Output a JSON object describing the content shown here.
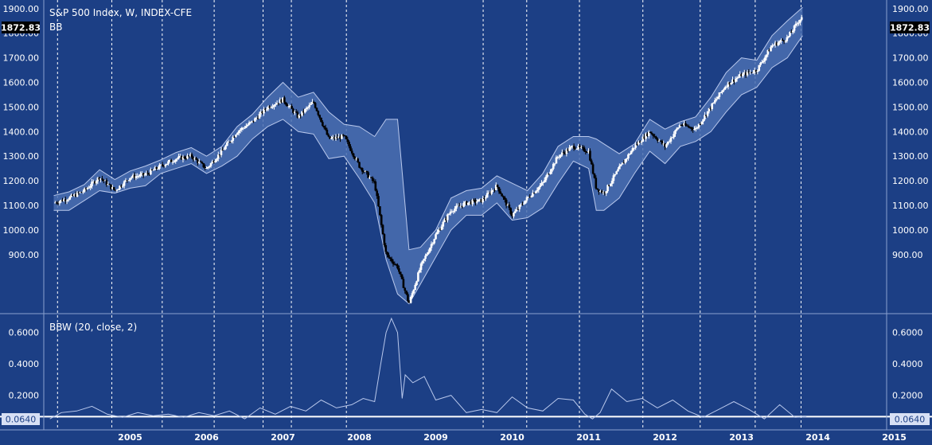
{
  "chart_data": [
    {
      "type": "candlestick",
      "title": "S&P 500 Index, W, INDEX-CFE",
      "indicator": "BB",
      "last_price": "1872.83",
      "y_ticks": [
        "1900.00",
        "1800.00",
        "1700.00",
        "1600.00",
        "1500.00",
        "1400.00",
        "1300.00",
        "1200.00",
        "1100.00",
        "1000.00",
        "900.00"
      ],
      "y_tick_values": [
        1900,
        1800,
        1700,
        1600,
        1500,
        1400,
        1300,
        1200,
        1100,
        1000,
        900
      ],
      "ylim": [
        660,
        1935
      ],
      "grid": "vertical dashed lines",
      "series": [
        {
          "name": "S&P 500 Index",
          "x": [
            2004.5,
            2004.7,
            2004.9,
            2005.1,
            2005.3,
            2005.5,
            2005.7,
            2005.9,
            2006.1,
            2006.3,
            2006.5,
            2006.7,
            2006.9,
            2007.1,
            2007.3,
            2007.5,
            2007.7,
            2007.9,
            2008.1,
            2008.3,
            2008.5,
            2008.7,
            2008.85,
            2009.0,
            2009.15,
            2009.3,
            2009.5,
            2009.7,
            2009.9,
            2010.1,
            2010.3,
            2010.5,
            2010.7,
            2010.9,
            2011.1,
            2011.3,
            2011.5,
            2011.6,
            2011.7,
            2011.9,
            2012.1,
            2012.3,
            2012.5,
            2012.7,
            2012.9,
            2013.1,
            2013.3,
            2013.5,
            2013.7,
            2013.9,
            2014.1,
            2014.3
          ],
          "values": [
            1110,
            1130,
            1160,
            1215,
            1160,
            1215,
            1225,
            1260,
            1290,
            1300,
            1250,
            1320,
            1400,
            1440,
            1500,
            1530,
            1460,
            1520,
            1370,
            1380,
            1260,
            1190,
            900,
            850,
            700,
            850,
            980,
            1080,
            1110,
            1120,
            1180,
            1060,
            1130,
            1190,
            1300,
            1340,
            1320,
            1170,
            1150,
            1250,
            1340,
            1400,
            1340,
            1430,
            1410,
            1500,
            1590,
            1630,
            1650,
            1750,
            1780,
            1872.83
          ]
        },
        {
          "name": "BB upper",
          "values": [
            1140,
            1155,
            1185,
            1245,
            1205,
            1240,
            1260,
            1285,
            1315,
            1335,
            1300,
            1340,
            1420,
            1470,
            1540,
            1600,
            1540,
            1560,
            1480,
            1430,
            1420,
            1380,
            1450,
            1450,
            920,
            930,
            1000,
            1130,
            1160,
            1170,
            1220,
            1190,
            1160,
            1230,
            1340,
            1380,
            1380,
            1370,
            1350,
            1310,
            1350,
            1450,
            1410,
            1440,
            1460,
            1540,
            1640,
            1700,
            1690,
            1790,
            1850,
            1905
          ]
        },
        {
          "name": "BB lower",
          "values": [
            1080,
            1080,
            1120,
            1160,
            1150,
            1170,
            1180,
            1230,
            1250,
            1270,
            1230,
            1260,
            1300,
            1370,
            1420,
            1450,
            1400,
            1390,
            1290,
            1300,
            1210,
            1110,
            880,
            740,
            700,
            780,
            890,
            1000,
            1060,
            1060,
            1110,
            1040,
            1050,
            1090,
            1190,
            1280,
            1250,
            1080,
            1080,
            1130,
            1230,
            1320,
            1270,
            1340,
            1360,
            1400,
            1480,
            1550,
            1580,
            1660,
            1700,
            1790
          ]
        }
      ]
    },
    {
      "type": "line",
      "title": "BBW (20, close, 2)",
      "last_value": "0.0640",
      "y_ticks": [
        "0.6000",
        "0.4000",
        "0.2000"
      ],
      "y_tick_values": [
        0.6,
        0.4,
        0.2
      ],
      "ylim": [
        -0.02,
        0.72
      ],
      "reference_line": 0.064,
      "series": [
        {
          "name": "BBW",
          "x": [
            2004.45,
            2004.6,
            2004.8,
            2005.0,
            2005.2,
            2005.4,
            2005.6,
            2005.8,
            2006.0,
            2006.2,
            2006.4,
            2006.6,
            2006.8,
            2007.0,
            2007.2,
            2007.4,
            2007.6,
            2007.8,
            2008.0,
            2008.2,
            2008.4,
            2008.55,
            2008.7,
            2008.78,
            2008.85,
            2008.92,
            2009.0,
            2009.06,
            2009.1,
            2009.2,
            2009.35,
            2009.5,
            2009.7,
            2009.9,
            2010.1,
            2010.3,
            2010.5,
            2010.7,
            2010.9,
            2011.1,
            2011.3,
            2011.45,
            2011.55,
            2011.65,
            2011.8,
            2012.0,
            2012.2,
            2012.4,
            2012.6,
            2012.8,
            2013.0,
            2013.2,
            2013.4,
            2013.6,
            2013.8,
            2014.0,
            2014.2,
            2014.35
          ],
          "values": [
            0.05,
            0.09,
            0.1,
            0.13,
            0.08,
            0.06,
            0.09,
            0.07,
            0.08,
            0.06,
            0.09,
            0.07,
            0.1,
            0.05,
            0.12,
            0.08,
            0.13,
            0.1,
            0.17,
            0.12,
            0.14,
            0.18,
            0.16,
            0.4,
            0.6,
            0.69,
            0.6,
            0.18,
            0.33,
            0.28,
            0.32,
            0.17,
            0.2,
            0.09,
            0.11,
            0.09,
            0.19,
            0.12,
            0.1,
            0.18,
            0.17,
            0.08,
            0.05,
            0.09,
            0.24,
            0.16,
            0.18,
            0.12,
            0.17,
            0.1,
            0.06,
            0.11,
            0.16,
            0.11,
            0.05,
            0.14,
            0.06,
            0.064
          ]
        }
      ]
    }
  ],
  "x_axis": {
    "labels": [
      "2005",
      "2006",
      "2007",
      "2008",
      "2009",
      "2010",
      "2011",
      "2012",
      "2013",
      "2014",
      "2015"
    ],
    "values": [
      2005,
      2006,
      2007,
      2008,
      2009,
      2010,
      2011,
      2012,
      2013,
      2014,
      2015
    ],
    "xlim": [
      2004.37,
      2015.4
    ],
    "divider_years": [
      2004.55,
      2005.26,
      2005.92,
      2006.6,
      2007.24,
      2007.61,
      2008.33,
      2010.12,
      2010.69,
      2011.38,
      2012.21,
      2012.96,
      2013.68,
      2014.28
    ]
  },
  "colors": {
    "background": "#1c3f85",
    "band_fill": "#4a6eb0",
    "band_line": "#b9c8ec",
    "axis_text": "#ffffff",
    "price_tag": "#000000",
    "up_candle": "#ffffff",
    "down_candle": "#000000"
  }
}
